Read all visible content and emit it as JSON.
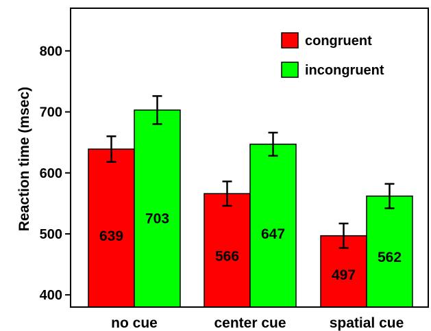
{
  "chart_data": {
    "type": "bar",
    "ylabel": "Reaction time (msec)",
    "xlabel": "",
    "ylim": [
      380,
      870
    ],
    "yticks": [
      400,
      500,
      600,
      700,
      800
    ],
    "categories": [
      "no cue",
      "center cue",
      "spatial cue"
    ],
    "series": [
      {
        "name": "congruent",
        "color": "#ff0000",
        "values": [
          639,
          566,
          497
        ],
        "errors": [
          21,
          20,
          20
        ]
      },
      {
        "name": "incongruent",
        "color": "#00ff00",
        "values": [
          703,
          647,
          562
        ],
        "errors": [
          23,
          19,
          20
        ]
      }
    ],
    "data_labels": {
      "congruent": [
        "639",
        "566",
        "497"
      ],
      "incongruent": [
        "703",
        "647",
        "562"
      ]
    },
    "legend_position": "top-right",
    "grid": false
  }
}
